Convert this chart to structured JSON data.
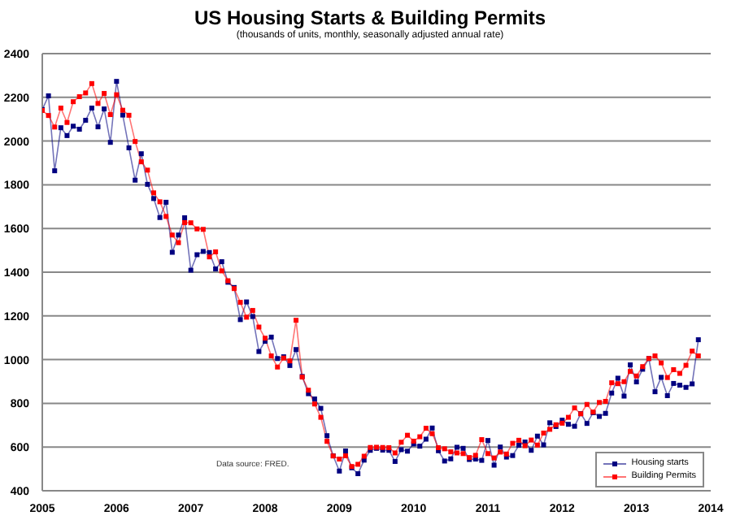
{
  "chart_data": {
    "type": "line",
    "title": "US Housing Starts & Building Permits",
    "subtitle": "(thousands of units, monthly, seasonally adjusted annual rate)",
    "annotations": [
      "Data source: FRED."
    ],
    "x": [
      "2005-01",
      "2005-02",
      "2005-03",
      "2005-04",
      "2005-05",
      "2005-06",
      "2005-07",
      "2005-08",
      "2005-09",
      "2005-10",
      "2005-11",
      "2005-12",
      "2006-01",
      "2006-02",
      "2006-03",
      "2006-04",
      "2006-05",
      "2006-06",
      "2006-07",
      "2006-08",
      "2006-09",
      "2006-10",
      "2006-11",
      "2006-12",
      "2007-01",
      "2007-02",
      "2007-03",
      "2007-04",
      "2007-05",
      "2007-06",
      "2007-07",
      "2007-08",
      "2007-09",
      "2007-10",
      "2007-11",
      "2007-12",
      "2008-01",
      "2008-02",
      "2008-03",
      "2008-04",
      "2008-05",
      "2008-06",
      "2008-07",
      "2008-08",
      "2008-09",
      "2008-10",
      "2008-11",
      "2008-12",
      "2009-01",
      "2009-02",
      "2009-03",
      "2009-04",
      "2009-05",
      "2009-06",
      "2009-07",
      "2009-08",
      "2009-09",
      "2009-10",
      "2009-11",
      "2009-12",
      "2010-01",
      "2010-02",
      "2010-03",
      "2010-04",
      "2010-05",
      "2010-06",
      "2010-07",
      "2010-08",
      "2010-09",
      "2010-10",
      "2010-11",
      "2010-12",
      "2011-01",
      "2011-02",
      "2011-03",
      "2011-04",
      "2011-05",
      "2011-06",
      "2011-07",
      "2011-08",
      "2011-09",
      "2011-10",
      "2011-11",
      "2011-12",
      "2012-01",
      "2012-02",
      "2012-03",
      "2012-04",
      "2012-05",
      "2012-06",
      "2012-07",
      "2012-08",
      "2012-09",
      "2012-10",
      "2012-11",
      "2012-12",
      "2013-01",
      "2013-02",
      "2013-03",
      "2013-04",
      "2013-05",
      "2013-06",
      "2013-07",
      "2013-08",
      "2013-09",
      "2013-10",
      "2013-11"
    ],
    "series": [
      {
        "name": "Housing starts",
        "color": "#000080",
        "values": [
          2144,
          2207,
          1864,
          2061,
          2025,
          2068,
          2054,
          2095,
          2151,
          2065,
          2147,
          1994,
          2273,
          2119,
          1969,
          1821,
          1942,
          1802,
          1737,
          1650,
          1720,
          1491,
          1570,
          1649,
          1409,
          1480,
          1495,
          1490,
          1415,
          1448,
          1354,
          1330,
          1183,
          1264,
          1197,
          1037,
          1084,
          1103,
          1005,
          1013,
          973,
          1046,
          923,
          844,
          820,
          777,
          652,
          560,
          490,
          582,
          505,
          478,
          540,
          585,
          594,
          586,
          585,
          534,
          588,
          581,
          614,
          604,
          636,
          687,
          583,
          536,
          546,
          599,
          594,
          543,
          545,
          539,
          630,
          517,
          600,
          554,
          561,
          608,
          623,
          585,
          650,
          610,
          711,
          694,
          723,
          704,
          695,
          753,
          708,
          757,
          740,
          754,
          847,
          915,
          833,
          976,
          898,
          956,
          1005,
          853,
          919,
          835,
          891,
          883,
          873,
          889,
          1091
        ]
      },
      {
        "name": "Building Permits",
        "color": "#ff0000",
        "values": [
          2140,
          2117,
          2064,
          2151,
          2085,
          2180,
          2203,
          2220,
          2263,
          2172,
          2218,
          2121,
          2212,
          2141,
          2118,
          1998,
          1905,
          1867,
          1763,
          1722,
          1655,
          1570,
          1535,
          1627,
          1626,
          1598,
          1596,
          1470,
          1493,
          1406,
          1361,
          1325,
          1262,
          1194,
          1225,
          1149,
          1098,
          1017,
          966,
          1007,
          994,
          1180,
          920,
          860,
          797,
          736,
          626,
          559,
          545,
          560,
          511,
          521,
          558,
          598,
          599,
          598,
          597,
          573,
          622,
          654,
          627,
          647,
          686,
          661,
          597,
          592,
          578,
          573,
          570,
          552,
          562,
          634,
          570,
          550,
          577,
          568,
          617,
          631,
          606,
          632,
          609,
          664,
          681,
          702,
          709,
          736,
          779,
          752,
          795,
          760,
          804,
          809,
          894,
          890,
          899,
          946,
          925,
          968,
          1005,
          1017,
          985,
          918,
          954,
          937,
          974,
          1039,
          1017
        ]
      }
    ],
    "xlim": [
      "2005-01",
      "2014-01"
    ],
    "xticks": [
      "2005",
      "2006",
      "2007",
      "2008",
      "2009",
      "2010",
      "2011",
      "2012",
      "2013",
      "2014"
    ],
    "ylim": [
      400,
      2400
    ],
    "yticks": [
      400,
      600,
      800,
      1000,
      1200,
      1400,
      1600,
      1800,
      2000,
      2200,
      2400
    ],
    "grid": "y",
    "legend": "bottom right",
    "marker": "square",
    "line_style": "solid"
  }
}
